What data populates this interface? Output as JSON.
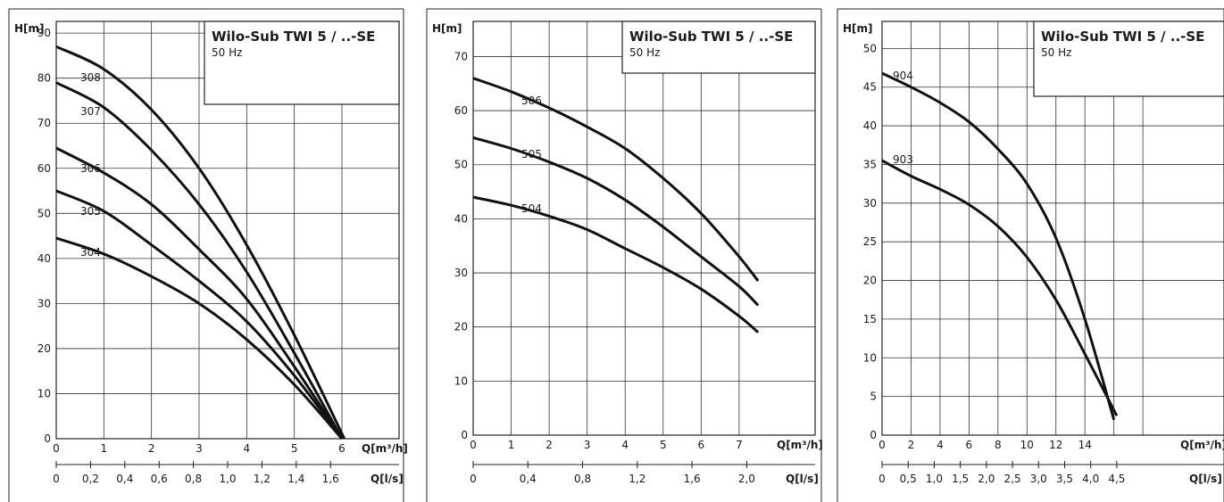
{
  "chart_data": [
    {
      "type": "line",
      "title": "Wilo-Sub TWI 5 / ..-SE",
      "subtitle": "50 Hz",
      "ylabel": "H[m]",
      "xlabel": "Q[m³/h]",
      "x2label": "Q[l/s]",
      "xlim": [
        0,
        6
      ],
      "ylim": [
        0,
        90
      ],
      "x_ticks": [
        "0",
        "1",
        "2",
        "3",
        "4",
        "5",
        "6"
      ],
      "y_ticks": [
        "0",
        "10",
        "20",
        "30",
        "40",
        "50",
        "60",
        "70",
        "80",
        "90"
      ],
      "x2_ticks": [
        "0",
        "0,2",
        "0,4",
        "0,6",
        "0,8",
        "1,0",
        "1,2",
        "1,4",
        "1,6"
      ],
      "grid": true,
      "series": [
        {
          "name": "308",
          "x": [
            0,
            1,
            2,
            3,
            4,
            5,
            6.05
          ],
          "y": [
            87,
            82,
            73,
            60,
            43,
            23,
            0
          ]
        },
        {
          "name": "307",
          "x": [
            0,
            1,
            2,
            3,
            4,
            5,
            6.0
          ],
          "y": [
            79,
            73.5,
            64,
            52,
            37,
            19,
            0
          ]
        },
        {
          "name": "306",
          "x": [
            0,
            1,
            2,
            3,
            4,
            5,
            6.0
          ],
          "y": [
            64.5,
            59,
            52,
            42,
            31,
            16,
            0
          ]
        },
        {
          "name": "305",
          "x": [
            0,
            1,
            2,
            3,
            4,
            5,
            6.0
          ],
          "y": [
            55,
            50.5,
            43,
            35,
            26,
            14,
            0
          ]
        },
        {
          "name": "304",
          "x": [
            0,
            1,
            2,
            3,
            4,
            5,
            6.0
          ],
          "y": [
            44.5,
            41,
            36,
            30,
            22,
            12,
            0
          ]
        }
      ]
    },
    {
      "type": "line",
      "title": "Wilo-Sub TWI 5 / ..-SE",
      "subtitle": "50 Hz",
      "ylabel": "H[m]",
      "xlabel": "Q[m³/h]",
      "x2label": "Q[l/s]",
      "xlim": [
        0,
        7.5
      ],
      "ylim": [
        0,
        70
      ],
      "x_ticks": [
        "0",
        "1",
        "2",
        "3",
        "4",
        "5",
        "6",
        "7"
      ],
      "y_ticks": [
        "0",
        "10",
        "20",
        "30",
        "40",
        "50",
        "60",
        "70"
      ],
      "x2_ticks": [
        "0",
        "0,4",
        "0,8",
        "1,2",
        "1,6",
        "2,0"
      ],
      "grid": true,
      "series": [
        {
          "name": "506",
          "x": [
            0,
            1,
            2,
            3,
            4,
            5,
            6,
            7,
            7.5
          ],
          "y": [
            66,
            63.5,
            60.5,
            57,
            53,
            47.5,
            41,
            33,
            28.5
          ]
        },
        {
          "name": "505",
          "x": [
            0,
            1,
            2,
            3,
            4,
            5,
            6,
            7,
            7.5
          ],
          "y": [
            55,
            53,
            50.5,
            47.5,
            43.5,
            38.5,
            33,
            27.5,
            24
          ]
        },
        {
          "name": "504",
          "x": [
            0,
            1,
            2,
            3,
            4,
            5,
            6,
            7,
            7.5
          ],
          "y": [
            44,
            42.5,
            40.5,
            38,
            34.5,
            31,
            27,
            22,
            19
          ]
        }
      ]
    },
    {
      "type": "line",
      "title": "Wilo-Sub TWI 5 / ..-SE",
      "subtitle": "50 Hz",
      "ylabel": "H[m]",
      "xlabel": "Q[m³/h]",
      "x2label": "Q[l/s]",
      "xlim": [
        0,
        18
      ],
      "ylim": [
        0,
        50
      ],
      "x_ticks": [
        "0",
        "2",
        "4",
        "6",
        "8",
        "10",
        "12",
        "14"
      ],
      "y_ticks": [
        "0",
        "5",
        "10",
        "15",
        "20",
        "25",
        "30",
        "35",
        "40",
        "45",
        "50"
      ],
      "x2_ticks": [
        "0",
        "0,5",
        "1,0",
        "1,5",
        "2,0",
        "2,5",
        "3,0",
        "3,5",
        "4,0",
        "4,5"
      ],
      "grid": true,
      "series": [
        {
          "name": "904",
          "x": [
            0,
            2,
            4,
            6,
            8,
            10,
            12,
            14,
            16
          ],
          "y": [
            46.8,
            45,
            43,
            40.5,
            37,
            32.5,
            25.5,
            15,
            2
          ]
        },
        {
          "name": "903",
          "x": [
            0,
            2,
            4,
            6,
            8,
            10,
            12,
            14,
            16.2
          ],
          "y": [
            35.5,
            33.5,
            31.8,
            29.8,
            27,
            23,
            17.5,
            10.5,
            2.5
          ]
        }
      ]
    }
  ]
}
